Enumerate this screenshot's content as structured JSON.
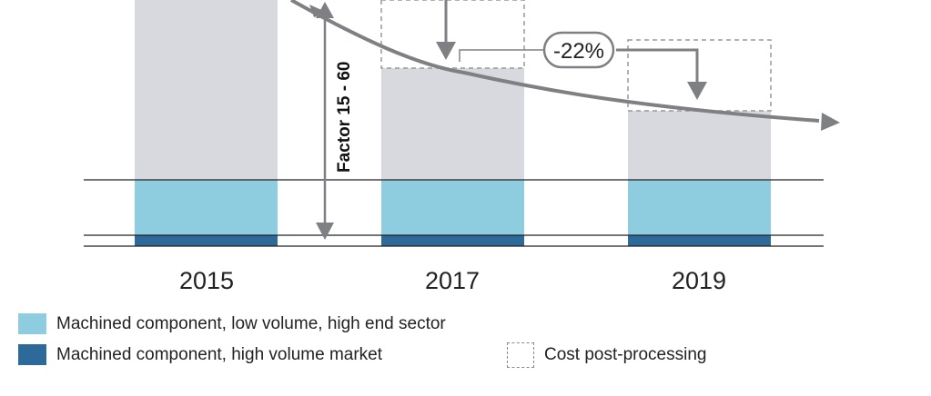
{
  "chart_data": {
    "type": "bar",
    "categories": [
      "2015",
      "2017",
      "2019"
    ],
    "series": [
      {
        "name": "Machined component, high volume market",
        "color": "#2e6a99"
      },
      {
        "name": "Machined component, low volume, high end sector",
        "color": "#8ecde0"
      },
      {
        "name": "Cost post-processing",
        "style": "dashed outline"
      }
    ],
    "annotations": {
      "factor_label": "Factor 15 - 60",
      "reduction_label": "-22%"
    },
    "title": "",
    "xlabel": "",
    "ylabel": "",
    "grid": false,
    "legend_position": "bottom"
  },
  "legend": {
    "items": [
      {
        "label": "Machined component, low volume, high end sector",
        "color": "#8ecde0"
      },
      {
        "label": "Machined component, high volume market",
        "color": "#2e6a99"
      },
      {
        "label": "Cost post-processing",
        "style": "dashed"
      }
    ]
  },
  "colors": {
    "bar_grey": "#d8d9de",
    "low_volume": "#8ecde0",
    "high_volume": "#2e6a99",
    "arrow": "#7f8084",
    "dashed": "#999999"
  }
}
